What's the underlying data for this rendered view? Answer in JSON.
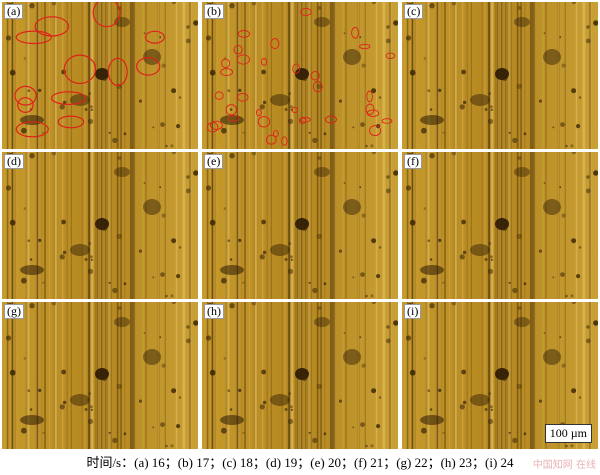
{
  "panels": [
    {
      "label": "(a)",
      "annotated": true
    },
    {
      "label": "(b)",
      "annotated": true
    },
    {
      "label": "(c)",
      "annotated": false
    },
    {
      "label": "(d)",
      "annotated": false
    },
    {
      "label": "(e)",
      "annotated": false
    },
    {
      "label": "(f)",
      "annotated": false
    },
    {
      "label": "(g)",
      "annotated": false
    },
    {
      "label": "(h)",
      "annotated": false
    },
    {
      "label": "(i)",
      "annotated": false
    }
  ],
  "scale_bar": "100 µm",
  "caption": "时间/s：(a) 16；(b) 17；(c) 18；(d) 19；(e) 20；(f) 21；(g) 22；(h) 23；(i) 24",
  "watermark": "中国知网 在线",
  "colors": {
    "metal": "#b98d24",
    "streak_dark": "#4a3208",
    "annotation": "#e0201a"
  }
}
